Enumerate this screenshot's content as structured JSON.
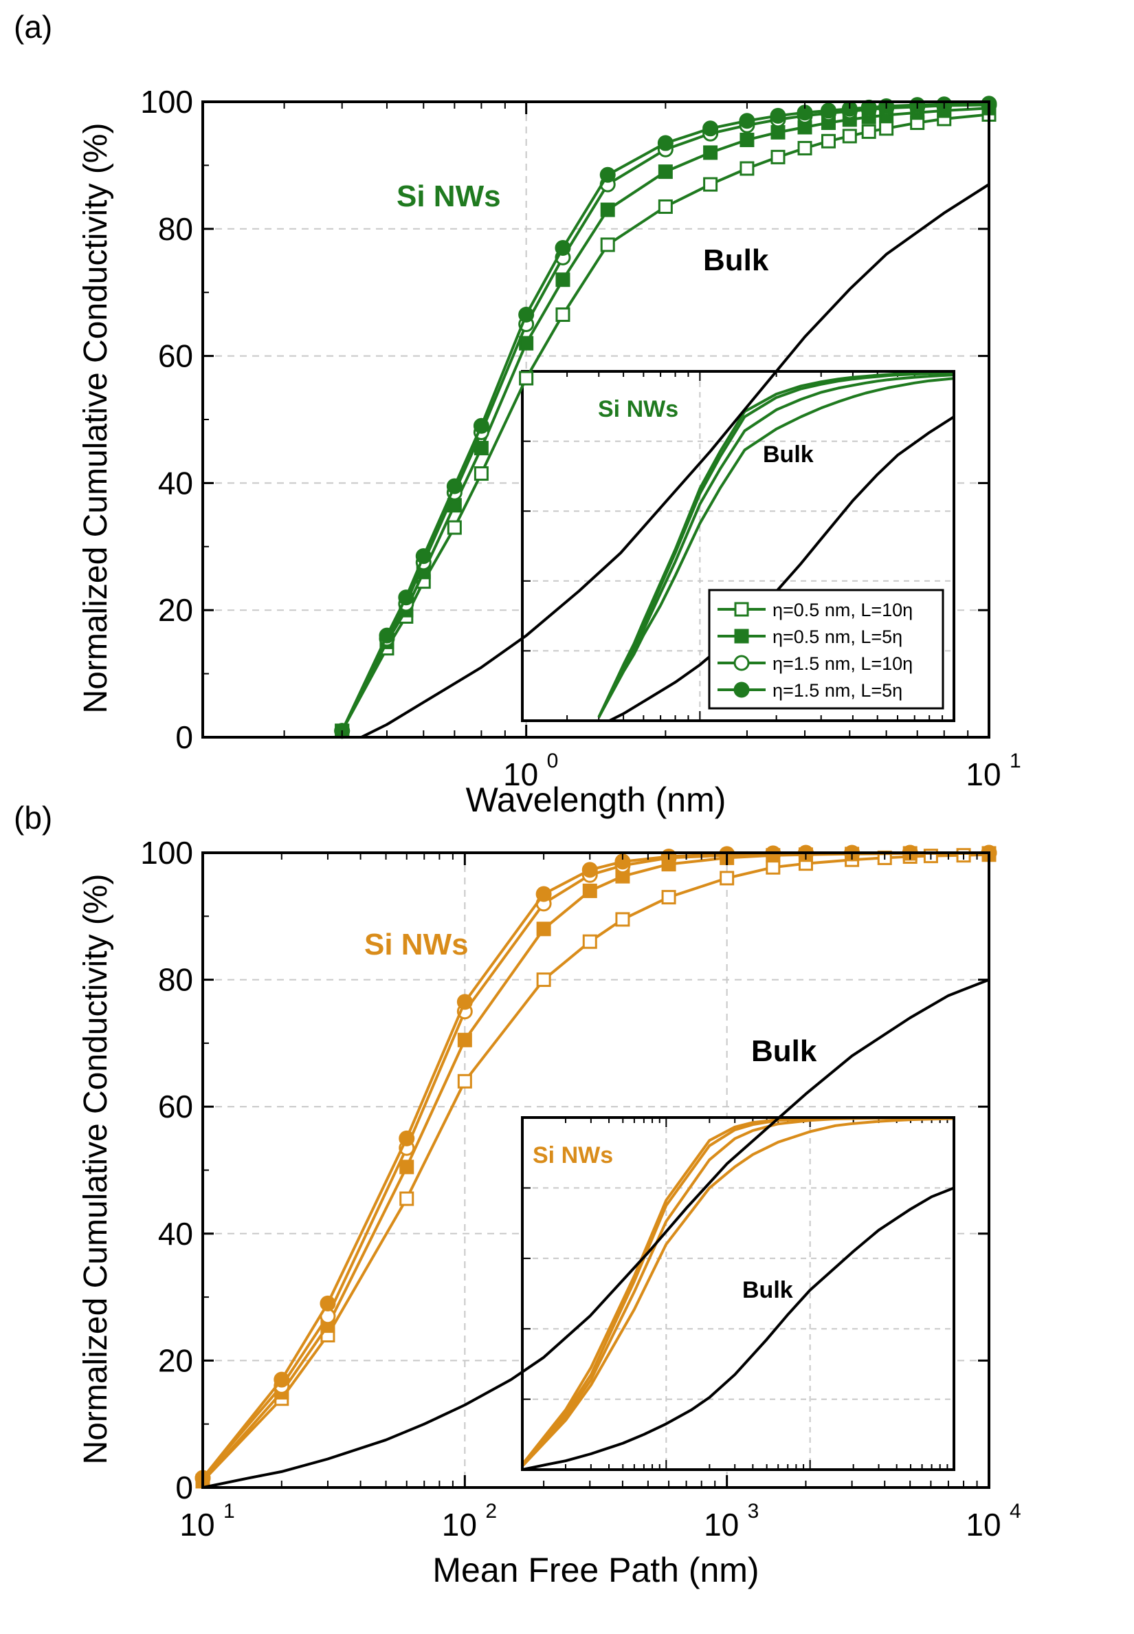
{
  "chart_data": [
    {
      "type": "line",
      "panel_label": "(a)",
      "xlabel": "Wavelength (nm)",
      "ylabel": "Normalized Cumulative Conductivity (%)",
      "x_scale": "log",
      "xlim": [
        0.2,
        10
      ],
      "ylim": [
        0,
        100
      ],
      "x_ticks": [
        {
          "value": 1,
          "base": "10",
          "exp": "0"
        },
        {
          "value": 10,
          "base": "10",
          "exp": "1"
        }
      ],
      "y_ticks": [
        0,
        20,
        40,
        60,
        80,
        100
      ],
      "grid": true,
      "color": "#1f7a1f",
      "annotations": [
        {
          "text": "Si NWs",
          "x": 0.9,
          "y": 85,
          "color": "#1f7a1f"
        },
        {
          "text": "Bulk",
          "x": 6.5,
          "y": 74,
          "color": "#000000"
        }
      ],
      "series": [
        {
          "name": "η=0.5 nm, L=10η",
          "marker": "open-square",
          "x": [
            0.4,
            0.5,
            0.55,
            0.6,
            0.7,
            0.8,
            1.0,
            1.2,
            1.5,
            2,
            2.5,
            3,
            3.5,
            4,
            4.5,
            5,
            5.5,
            6,
            7,
            8,
            10
          ],
          "y": [
            1,
            14,
            19,
            24.5,
            33,
            41.5,
            56.5,
            66.5,
            77.5,
            83.5,
            87,
            89.5,
            91.3,
            92.7,
            93.8,
            94.6,
            95.3,
            95.8,
            96.7,
            97.3,
            98
          ]
        },
        {
          "name": "η=0.5 nm, L=5η",
          "marker": "filled-square",
          "x": [
            0.4,
            0.5,
            0.55,
            0.6,
            0.7,
            0.8,
            1.0,
            1.2,
            1.5,
            2,
            2.5,
            3,
            3.5,
            4,
            4.5,
            5,
            5.5,
            6,
            7,
            8,
            10
          ],
          "y": [
            1,
            15,
            20,
            26,
            36.5,
            45.5,
            62,
            72,
            83,
            89,
            92,
            94,
            95.2,
            96,
            96.7,
            97.2,
            97.6,
            97.9,
            98.3,
            98.6,
            99
          ]
        },
        {
          "name": "η=1.5 nm, L=10η",
          "marker": "open-circle",
          "x": [
            0.4,
            0.5,
            0.55,
            0.6,
            0.7,
            0.8,
            1.0,
            1.2,
            1.5,
            2,
            2.5,
            3,
            3.5,
            4,
            4.5,
            5,
            5.5,
            6,
            7,
            8,
            10
          ],
          "y": [
            1,
            15.5,
            21,
            27.5,
            38.5,
            48,
            65,
            75.5,
            87,
            92.5,
            95,
            96.3,
            97.2,
            97.8,
            98.2,
            98.5,
            98.8,
            99,
            99.2,
            99.4,
            99.5
          ]
        },
        {
          "name": "η=1.5 nm, L=5η",
          "marker": "filled-circle",
          "x": [
            0.4,
            0.5,
            0.55,
            0.6,
            0.7,
            0.8,
            1.0,
            1.2,
            1.5,
            2,
            2.5,
            3,
            3.5,
            4,
            4.5,
            5,
            5.5,
            6,
            7,
            8,
            10
          ],
          "y": [
            1,
            16,
            22,
            28.5,
            39.5,
            49,
            66.5,
            77,
            88.5,
            93.5,
            95.8,
            97,
            97.8,
            98.3,
            98.6,
            98.9,
            99.1,
            99.3,
            99.5,
            99.6,
            99.7
          ]
        },
        {
          "name": "Bulk",
          "marker": "none",
          "x": [
            0.44,
            0.5,
            0.6,
            0.8,
            1,
            1.3,
            1.6,
            2,
            2.5,
            3,
            4,
            5,
            6,
            8,
            10
          ],
          "y": [
            0,
            2,
            5.5,
            11,
            16,
            23,
            29,
            37,
            45,
            52,
            63,
            70.5,
            76,
            82.5,
            87
          ]
        }
      ],
      "inset": {
        "annotations": [
          {
            "text": "Si NWs",
            "color": "#1f7a1f"
          },
          {
            "text": "Bulk",
            "color": "#000000"
          }
        ]
      }
    },
    {
      "type": "line",
      "panel_label": "(b)",
      "xlabel": "Mean Free Path (nm)",
      "ylabel": "Normalized Cumulative Conductivity (%)",
      "x_scale": "log",
      "xlim": [
        10,
        10000
      ],
      "ylim": [
        0,
        100
      ],
      "x_ticks": [
        {
          "value": 10,
          "base": "10",
          "exp": "1"
        },
        {
          "value": 100,
          "base": "10",
          "exp": "2"
        },
        {
          "value": 1000,
          "base": "10",
          "exp": "3"
        },
        {
          "value": 10000,
          "base": "10",
          "exp": "4"
        }
      ],
      "y_ticks": [
        0,
        20,
        40,
        60,
        80,
        100
      ],
      "grid": true,
      "color": "#d98c1a",
      "annotations": [
        {
          "text": "Si NWs",
          "x": 32,
          "y": 85,
          "color": "#d98c1a"
        },
        {
          "text": "Bulk",
          "x": 2500,
          "y": 69,
          "color": "#000000"
        }
      ],
      "series": [
        {
          "name": "η=0.5 nm, L=10η",
          "marker": "open-square",
          "x": [
            10,
            20,
            30,
            60,
            100,
            200,
            300,
            400,
            600,
            1000,
            1500,
            2000,
            3000,
            4000,
            5000,
            6000,
            8000,
            10000
          ],
          "y": [
            1,
            14,
            24,
            45.5,
            64,
            80,
            86,
            89.5,
            93,
            96,
            97.7,
            98.3,
            98.9,
            99.2,
            99.4,
            99.5,
            99.6,
            99.7
          ]
        },
        {
          "name": "η=0.5 nm, L=5η",
          "marker": "filled-square",
          "x": [
            10,
            20,
            30,
            60,
            100,
            200,
            300,
            400,
            600,
            1000,
            1500,
            2000,
            3000,
            5000,
            10000
          ],
          "y": [
            1,
            15,
            25.5,
            50.5,
            70.5,
            88,
            94,
            96.3,
            98.2,
            99.2,
            99.6,
            99.7,
            99.8,
            99.9,
            99.9
          ]
        },
        {
          "name": "η=1.5 nm, L=10η",
          "marker": "open-circle",
          "x": [
            10,
            20,
            30,
            60,
            100,
            200,
            300,
            400,
            600,
            1000,
            1500,
            2000,
            3000,
            5000,
            10000
          ],
          "y": [
            1.5,
            16,
            27,
            53.5,
            75,
            92,
            96.5,
            98,
            99.2,
            99.6,
            99.8,
            99.9,
            99.9,
            100,
            100
          ]
        },
        {
          "name": "η=1.5 nm, L=5η",
          "marker": "filled-circle",
          "x": [
            10,
            20,
            30,
            60,
            100,
            200,
            300,
            400,
            600,
            1000,
            1500,
            2000,
            3000,
            5000,
            10000
          ],
          "y": [
            1.5,
            17,
            29,
            55,
            76.5,
            93.5,
            97.3,
            98.6,
            99.4,
            99.8,
            99.9,
            100,
            100,
            100,
            100
          ]
        },
        {
          "name": "Bulk",
          "marker": "none",
          "x": [
            10,
            15,
            20,
            30,
            50,
            70,
            100,
            150,
            200,
            300,
            500,
            700,
            1000,
            2000,
            3000,
            5000,
            7000,
            10000
          ],
          "y": [
            0,
            1.5,
            2.5,
            4.5,
            7.5,
            10,
            13,
            17,
            20.5,
            27,
            37,
            44,
            51,
            62,
            68,
            74,
            77.5,
            80
          ]
        }
      ],
      "inset": {
        "annotations": [
          {
            "text": "Si NWs",
            "color": "#d98c1a"
          },
          {
            "text": "Bulk",
            "color": "#000000"
          }
        ]
      }
    }
  ]
}
